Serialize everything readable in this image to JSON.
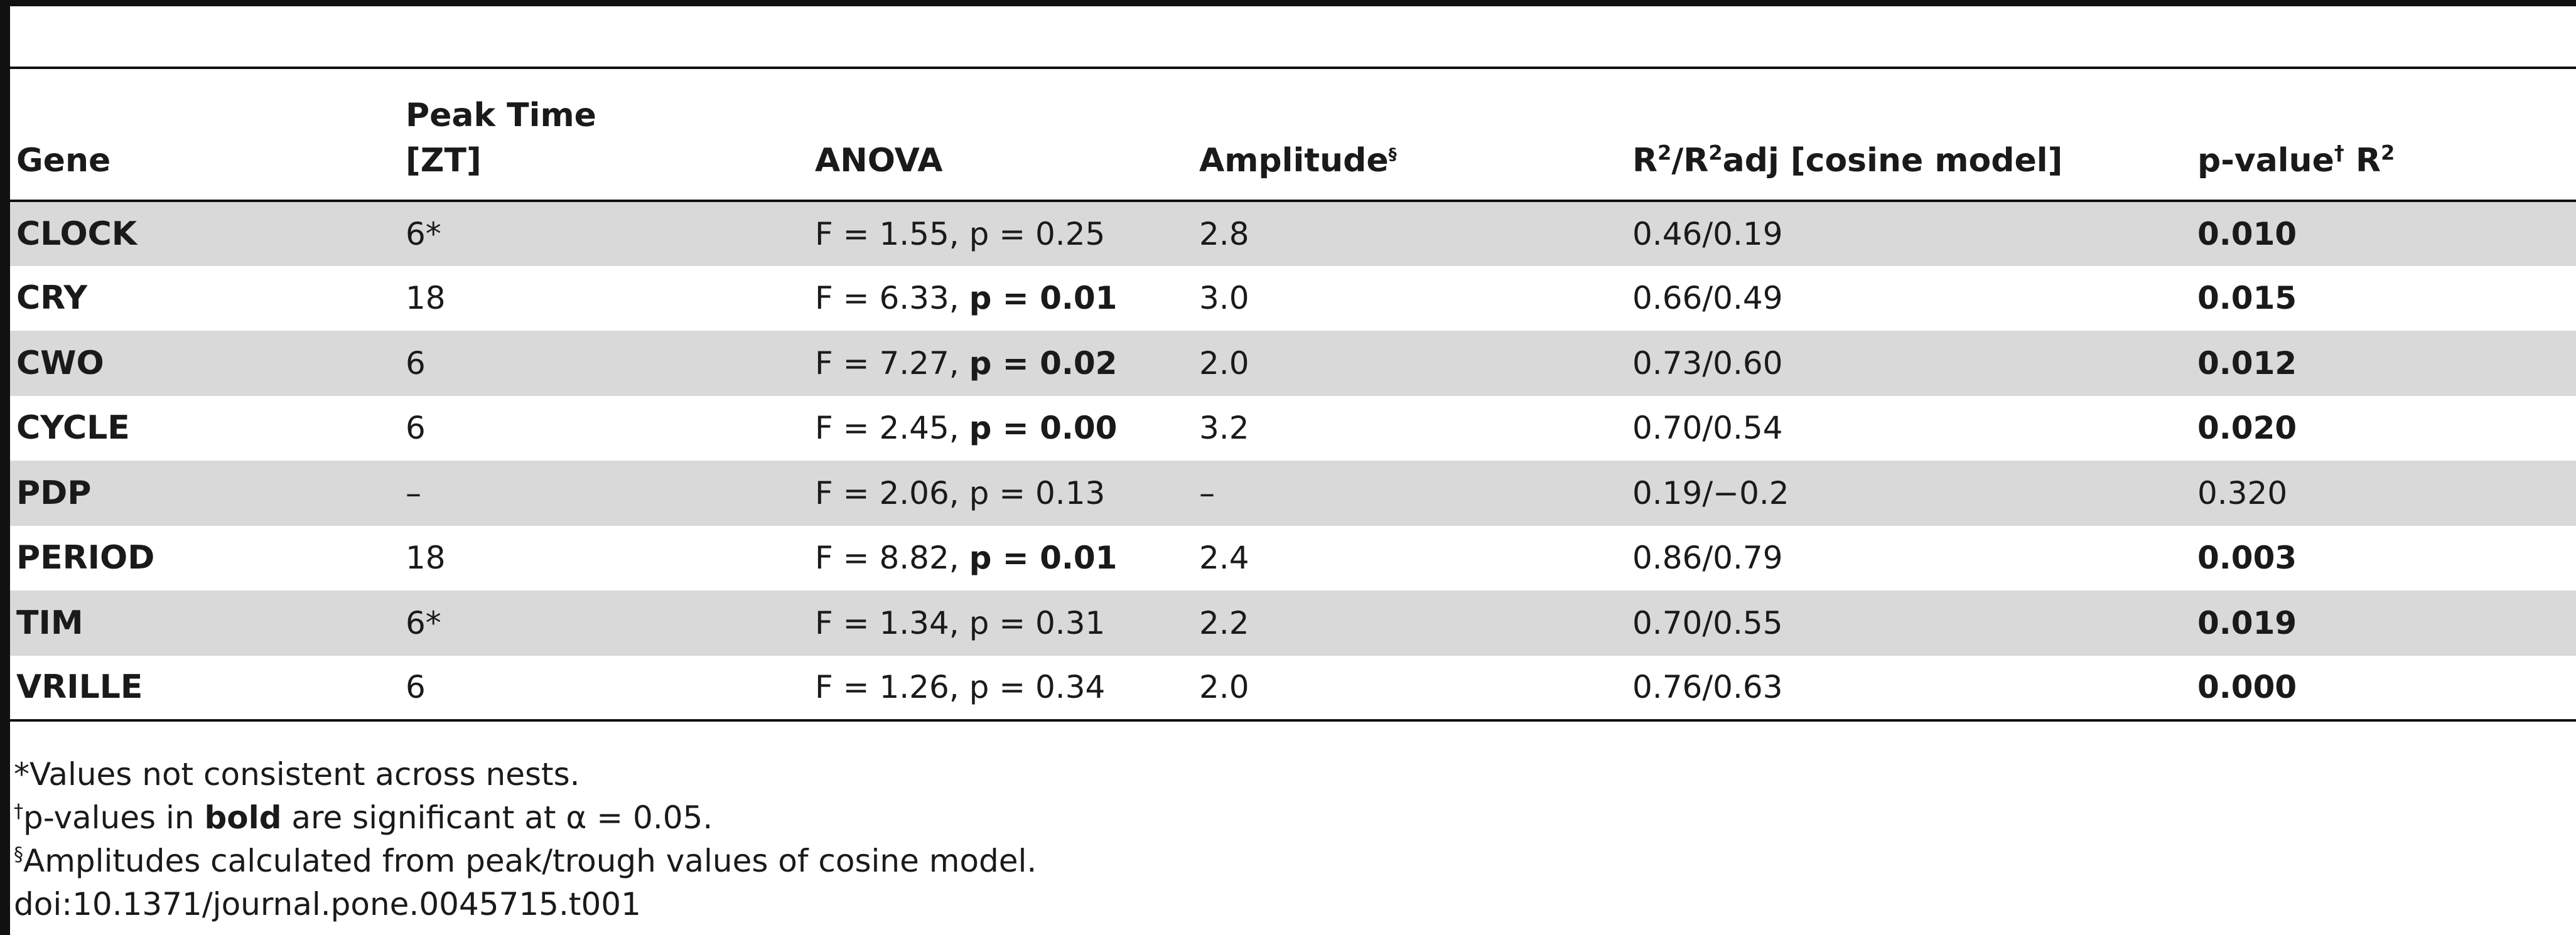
{
  "table": {
    "headers": {
      "gene": "Gene",
      "peak_line1": "Peak Time",
      "peak_line2": "[ZT]",
      "anova": "ANOVA",
      "amplitude": "Amplitude",
      "amplitude_mark": "§",
      "r2_R1": "R",
      "r2_exp1": "2",
      "r2_slash": "/R",
      "r2_exp2": "2",
      "r2_rest": "adj [cosine model]",
      "pval": "p-value",
      "pval_mark": "†",
      "pval_R": " R",
      "pval_exp": "2"
    },
    "rows": [
      {
        "gene": "CLOCK",
        "peak": "6*",
        "anova_f": "F = 1.55, ",
        "anova_p": "p = 0.25",
        "anova_sig": false,
        "amplitude": "2.8",
        "r2": "0.46/0.19",
        "pvalue": "0.010",
        "pvalue_sig": true
      },
      {
        "gene": "CRY",
        "peak": "18",
        "anova_f": "F = 6.33, ",
        "anova_p": "p = 0.01",
        "anova_sig": true,
        "amplitude": "3.0",
        "r2": "0.66/0.49",
        "pvalue": "0.015",
        "pvalue_sig": true
      },
      {
        "gene": "CWO",
        "peak": "6",
        "anova_f": "F = 7.27, ",
        "anova_p": "p = 0.02",
        "anova_sig": true,
        "amplitude": "2.0",
        "r2": "0.73/0.60",
        "pvalue": "0.012",
        "pvalue_sig": true
      },
      {
        "gene": "CYCLE",
        "peak": "6",
        "anova_f": "F = 2.45, ",
        "anova_p": "p = 0.00",
        "anova_sig": true,
        "amplitude": "3.2",
        "r2": "0.70/0.54",
        "pvalue": "0.020",
        "pvalue_sig": true
      },
      {
        "gene": "PDP",
        "peak": "–",
        "anova_f": "F = 2.06, ",
        "anova_p": "p = 0.13",
        "anova_sig": false,
        "amplitude": "–",
        "r2": "0.19/−0.2",
        "pvalue": "0.320",
        "pvalue_sig": false
      },
      {
        "gene": "PERIOD",
        "peak": "18",
        "anova_f": "F = 8.82, ",
        "anova_p": "p = 0.01",
        "anova_sig": true,
        "amplitude": "2.4",
        "r2": "0.86/0.79",
        "pvalue": "0.003",
        "pvalue_sig": true
      },
      {
        "gene": "TIM",
        "peak": "6*",
        "anova_f": "F = 1.34, ",
        "anova_p": "p = 0.31",
        "anova_sig": false,
        "amplitude": "2.2",
        "r2": "0.70/0.55",
        "pvalue": "0.019",
        "pvalue_sig": true
      },
      {
        "gene": "VRILLE",
        "peak": "6",
        "anova_f": "F = 1.26, ",
        "anova_p": "p = 0.34",
        "anova_sig": false,
        "amplitude": "2.0",
        "r2": "0.76/0.63",
        "pvalue": "0.000",
        "pvalue_sig": true
      }
    ]
  },
  "footnotes": {
    "note1": "*Values not consistent across nests.",
    "note2_mark": "†",
    "note2_a": "p-values in ",
    "note2_bold": "bold",
    "note2_b": " are significant at α = 0.05.",
    "note3_mark": "§",
    "note3": "Amplitudes calculated from peak/trough values of cosine model.",
    "doi": "doi:10.1371/journal.pone.0045715.t001"
  }
}
